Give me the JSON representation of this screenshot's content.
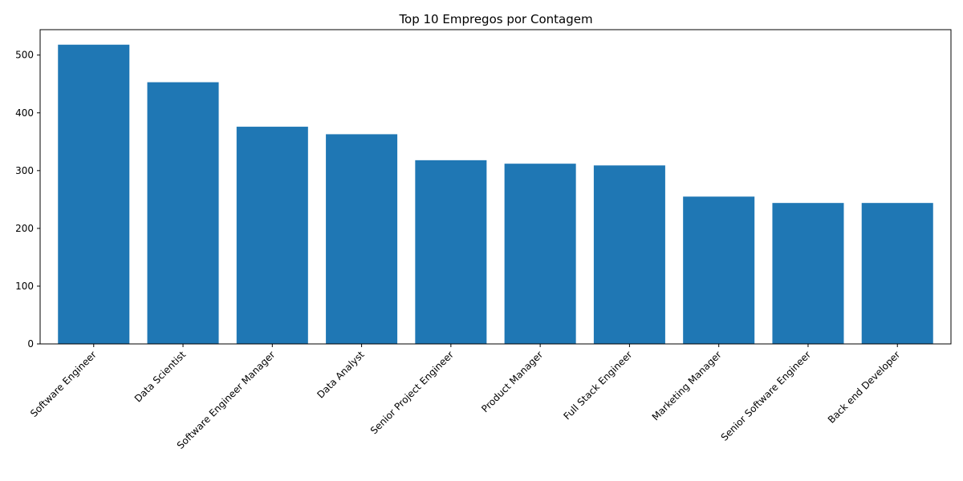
{
  "chart_data": {
    "type": "bar",
    "title": "Top 10 Empregos por Contagem",
    "xlabel": "",
    "ylabel": "",
    "categories": [
      "Software Engineer",
      "Data Scientist",
      "Software Engineer Manager",
      "Data Analyst",
      "Senior Project Engineer",
      "Product Manager",
      "Full Stack Engineer",
      "Marketing Manager",
      "Senior Software Engineer",
      "Back end Developer"
    ],
    "values": [
      518,
      453,
      376,
      363,
      318,
      312,
      309,
      255,
      244,
      244
    ],
    "ylim": [
      0,
      544
    ],
    "yticks": [
      0,
      100,
      200,
      300,
      400,
      500
    ],
    "grid": false,
    "bar_color": "#1f77b4",
    "xtick_rotation": 45
  }
}
